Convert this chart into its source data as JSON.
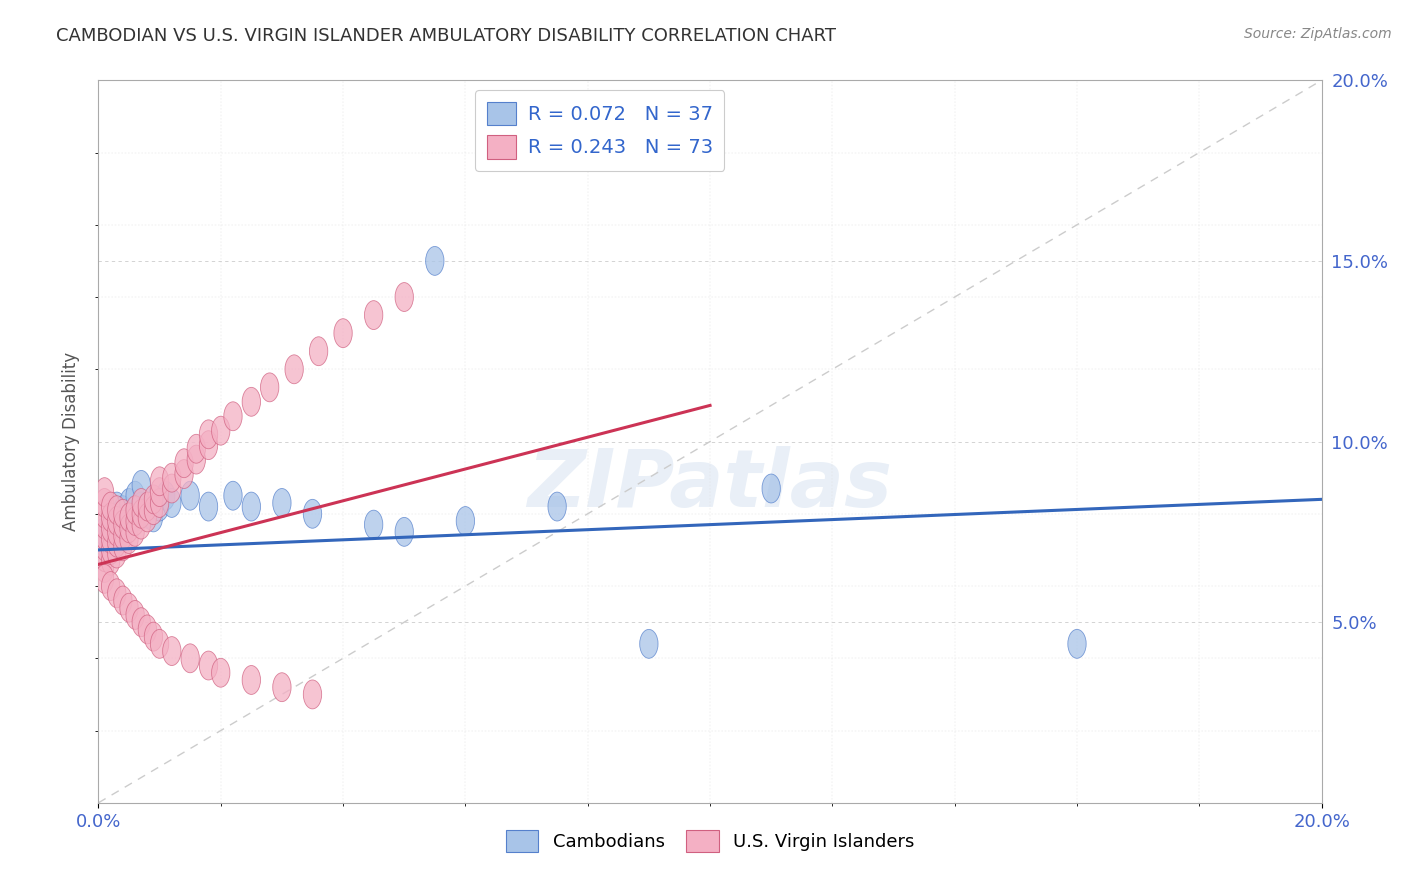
{
  "title": "CAMBODIAN VS U.S. VIRGIN ISLANDER AMBULATORY DISABILITY CORRELATION CHART",
  "source": "Source: ZipAtlas.com",
  "ylabel": "Ambulatory Disability",
  "xlim": [
    0.0,
    0.2
  ],
  "ylim": [
    0.0,
    0.2
  ],
  "cambodian_color": "#a8c4e8",
  "virgin_islander_color": "#f4b0c4",
  "cambodian_edge": "#5580cc",
  "virgin_islander_edge": "#d06080",
  "trend_cambodian_color": "#3366bb",
  "trend_virgin_color": "#cc3355",
  "diagonal_color": "#ddaaaa",
  "legend_r_cambodian": "R = 0.072",
  "legend_n_cambodian": "N = 37",
  "legend_r_virgin": "R = 0.243",
  "legend_n_virgin": "N = 73",
  "legend_label_cambodian": "Cambodians",
  "legend_label_virgin": "U.S. Virgin Islanders",
  "watermark": "ZIPatlas",
  "cam_trend_x": [
    0.0,
    0.2
  ],
  "cam_trend_y": [
    0.07,
    0.084
  ],
  "vir_trend_x": [
    0.0,
    0.1
  ],
  "vir_trend_y": [
    0.066,
    0.11
  ],
  "cambodian_x": [
    0.001,
    0.001,
    0.002,
    0.002,
    0.002,
    0.003,
    0.003,
    0.003,
    0.003,
    0.004,
    0.004,
    0.004,
    0.005,
    0.005,
    0.006,
    0.006,
    0.007,
    0.007,
    0.008,
    0.009,
    0.01,
    0.011,
    0.012,
    0.015,
    0.018,
    0.022,
    0.025,
    0.03,
    0.035,
    0.045,
    0.06,
    0.075,
    0.09,
    0.11,
    0.16,
    0.05,
    0.055
  ],
  "cambodian_y": [
    0.072,
    0.075,
    0.071,
    0.077,
    0.074,
    0.073,
    0.076,
    0.079,
    0.082,
    0.075,
    0.078,
    0.081,
    0.077,
    0.083,
    0.079,
    0.085,
    0.082,
    0.088,
    0.08,
    0.079,
    0.082,
    0.085,
    0.083,
    0.085,
    0.082,
    0.085,
    0.082,
    0.083,
    0.08,
    0.077,
    0.078,
    0.082,
    0.044,
    0.087,
    0.044,
    0.075,
    0.15
  ],
  "virgin_x": [
    0.001,
    0.001,
    0.001,
    0.001,
    0.001,
    0.001,
    0.001,
    0.001,
    0.002,
    0.002,
    0.002,
    0.002,
    0.002,
    0.002,
    0.003,
    0.003,
    0.003,
    0.003,
    0.003,
    0.004,
    0.004,
    0.004,
    0.004,
    0.005,
    0.005,
    0.005,
    0.006,
    0.006,
    0.006,
    0.007,
    0.007,
    0.007,
    0.008,
    0.008,
    0.009,
    0.009,
    0.01,
    0.01,
    0.01,
    0.012,
    0.012,
    0.014,
    0.014,
    0.016,
    0.016,
    0.018,
    0.018,
    0.02,
    0.022,
    0.025,
    0.028,
    0.032,
    0.036,
    0.04,
    0.045,
    0.05,
    0.001,
    0.002,
    0.003,
    0.004,
    0.005,
    0.006,
    0.007,
    0.008,
    0.009,
    0.01,
    0.012,
    0.015,
    0.018,
    0.02,
    0.025,
    0.03,
    0.035
  ],
  "virgin_y": [
    0.065,
    0.068,
    0.071,
    0.074,
    0.077,
    0.08,
    0.083,
    0.086,
    0.067,
    0.07,
    0.073,
    0.076,
    0.079,
    0.082,
    0.069,
    0.072,
    0.075,
    0.078,
    0.081,
    0.071,
    0.074,
    0.077,
    0.08,
    0.073,
    0.076,
    0.079,
    0.075,
    0.078,
    0.081,
    0.077,
    0.08,
    0.083,
    0.079,
    0.082,
    0.081,
    0.084,
    0.083,
    0.086,
    0.089,
    0.087,
    0.09,
    0.091,
    0.094,
    0.095,
    0.098,
    0.099,
    0.102,
    0.103,
    0.107,
    0.111,
    0.115,
    0.12,
    0.125,
    0.13,
    0.135,
    0.14,
    0.062,
    0.06,
    0.058,
    0.056,
    0.054,
    0.052,
    0.05,
    0.048,
    0.046,
    0.044,
    0.042,
    0.04,
    0.038,
    0.036,
    0.034,
    0.032,
    0.03
  ]
}
